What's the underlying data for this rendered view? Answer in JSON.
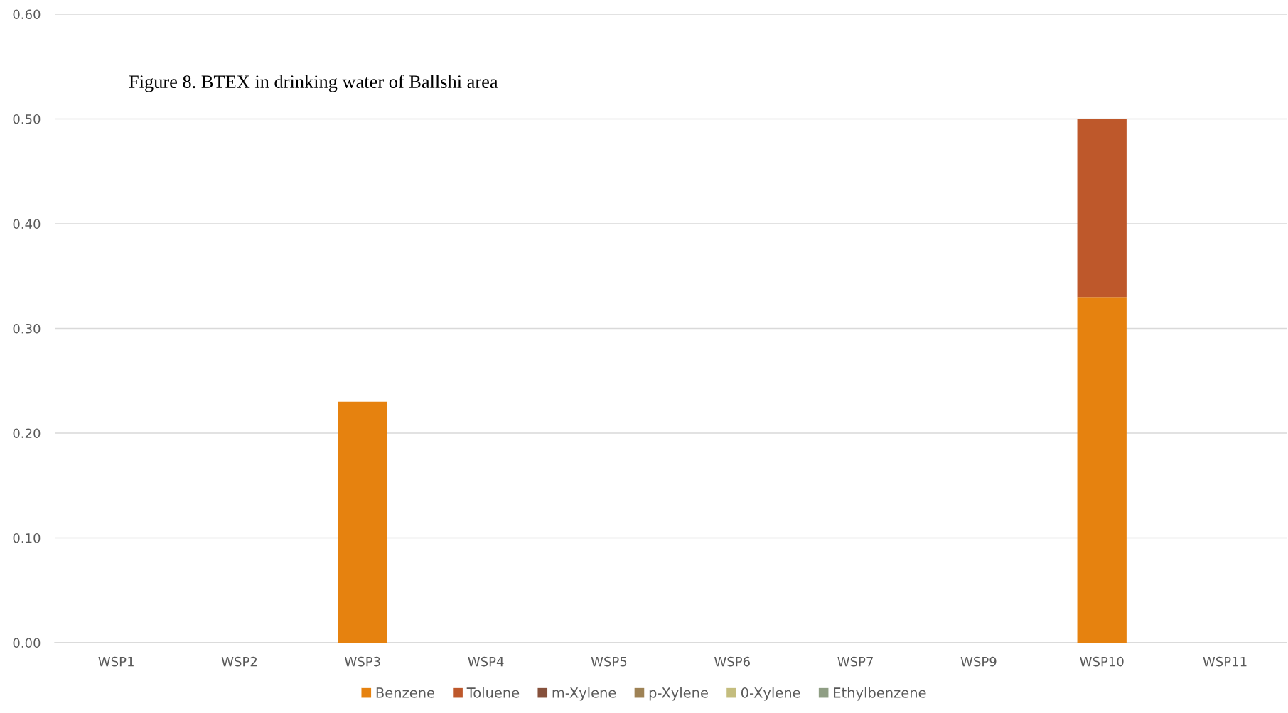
{
  "chart_data": {
    "type": "bar",
    "title": "Figure 8. BTEX in drinking water of Ballshi area",
    "categories": [
      "WSP1",
      "WSP2",
      "WSP3",
      "WSP4",
      "WSP5",
      "WSP6",
      "WSP7",
      "WSP9",
      "WSP10",
      "WSP11"
    ],
    "series": [
      {
        "name": "Benzene",
        "color": "#e6820f",
        "values": [
          0,
          0,
          0.23,
          0,
          0,
          0,
          0,
          0,
          0.33,
          0
        ]
      },
      {
        "name": "Toluene",
        "color": "#be582b",
        "values": [
          0,
          0,
          0,
          0,
          0,
          0,
          0,
          0,
          0.17,
          0
        ]
      },
      {
        "name": "m-Xylene",
        "color": "#86513c",
        "values": [
          0,
          0,
          0,
          0,
          0,
          0,
          0,
          0,
          0,
          0
        ]
      },
      {
        "name": "p-Xylene",
        "color": "#9e8255",
        "values": [
          0,
          0,
          0,
          0,
          0,
          0,
          0,
          0,
          0,
          0
        ]
      },
      {
        "name": "0-Xylene",
        "color": "#c4bd7e",
        "values": [
          0,
          0,
          0,
          0,
          0,
          0,
          0,
          0,
          0,
          0
        ]
      },
      {
        "name": "Ethylbenzene",
        "color": "#8f9e84",
        "values": [
          0,
          0,
          0,
          0,
          0,
          0,
          0,
          0,
          0,
          0
        ]
      }
    ],
    "stacked": true,
    "ylim": [
      0,
      0.6
    ],
    "yticks": [
      {
        "value": 0,
        "label": "0.00"
      },
      {
        "value": 0.1,
        "label": "0.10"
      },
      {
        "value": 0.2,
        "label": "0.20"
      },
      {
        "value": 0.3,
        "label": "0.30"
      },
      {
        "value": 0.4,
        "label": "0.40"
      },
      {
        "value": 0.5,
        "label": "0.50"
      },
      {
        "value": 0.6,
        "label": "0.60"
      }
    ],
    "grid": "y",
    "legend": "bottom"
  }
}
